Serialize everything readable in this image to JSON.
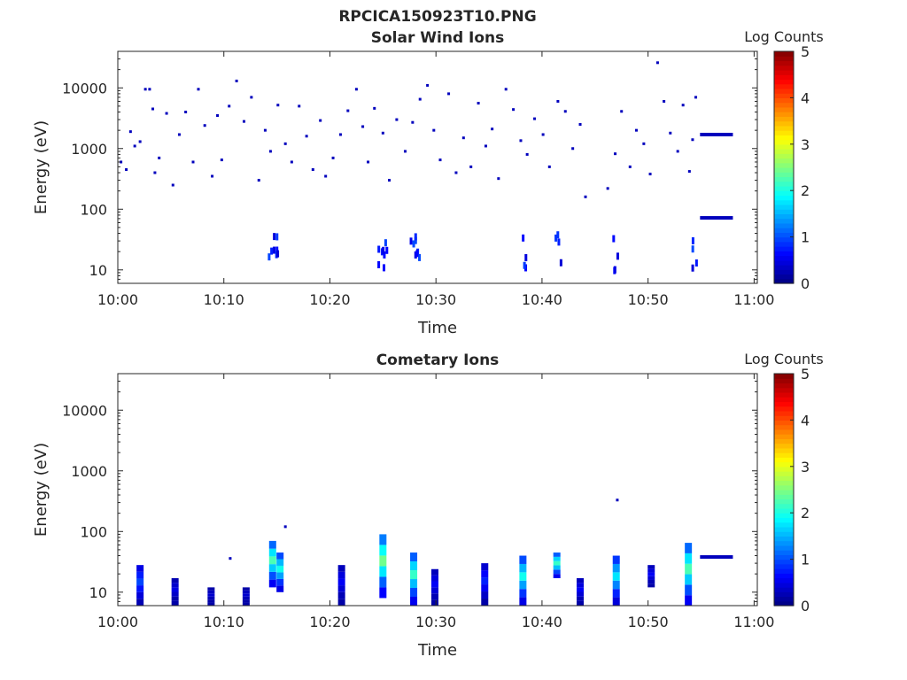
{
  "figure_title": "RPCICA150923T10.PNG",
  "colorbar": {
    "label": "Log Counts",
    "ticks": [
      "0",
      "1",
      "2",
      "3",
      "4",
      "5"
    ],
    "range": [
      0,
      5
    ],
    "colormap": "jet"
  },
  "chart_data": [
    {
      "type": "heatmap",
      "title": "Solar Wind Ions",
      "xlabel": "Time",
      "ylabel": "Energy (eV)",
      "xticks": [
        "10:00",
        "10:10",
        "10:20",
        "10:30",
        "10:40",
        "10:50",
        "11:00"
      ],
      "xlim_minutes": [
        0,
        60
      ],
      "yscale": "log",
      "ylim": [
        6,
        40000
      ],
      "yticks": [
        "10",
        "100",
        "1000",
        "10000"
      ],
      "scattered_points": [
        [
          0.3,
          600
        ],
        [
          0.8,
          450
        ],
        [
          1.2,
          1900
        ],
        [
          1.6,
          1100
        ],
        [
          2.1,
          1300
        ],
        [
          2.6,
          9500
        ],
        [
          3.0,
          9500
        ],
        [
          3.3,
          4500
        ],
        [
          3.5,
          400
        ],
        [
          3.9,
          700
        ],
        [
          4.6,
          3800
        ],
        [
          5.2,
          250
        ],
        [
          5.8,
          1700
        ],
        [
          6.4,
          4000
        ],
        [
          7.1,
          600
        ],
        [
          7.6,
          9500
        ],
        [
          8.2,
          2400
        ],
        [
          8.9,
          350
        ],
        [
          9.4,
          3500
        ],
        [
          9.8,
          650
        ],
        [
          10.5,
          5000
        ],
        [
          11.2,
          13000
        ],
        [
          11.9,
          2800
        ],
        [
          12.6,
          7000
        ],
        [
          13.3,
          300
        ],
        [
          13.9,
          2000
        ],
        [
          14.4,
          900
        ],
        [
          15.1,
          5200
        ],
        [
          15.8,
          1200
        ],
        [
          16.4,
          600
        ],
        [
          17.1,
          5000
        ],
        [
          17.8,
          1600
        ],
        [
          18.4,
          450
        ],
        [
          19.1,
          2900
        ],
        [
          19.6,
          350
        ],
        [
          20.3,
          700
        ],
        [
          21.0,
          1700
        ],
        [
          21.7,
          4200
        ],
        [
          22.5,
          9500
        ],
        [
          23.1,
          2300
        ],
        [
          23.6,
          600
        ],
        [
          24.2,
          4600
        ],
        [
          25.0,
          1800
        ],
        [
          25.6,
          300
        ],
        [
          26.3,
          3000
        ],
        [
          27.1,
          900
        ],
        [
          27.8,
          2700
        ],
        [
          28.5,
          6500
        ],
        [
          29.2,
          11000
        ],
        [
          29.8,
          2000
        ],
        [
          30.4,
          650
        ],
        [
          31.2,
          8000
        ],
        [
          31.9,
          400
        ],
        [
          32.6,
          1500
        ],
        [
          33.3,
          500
        ],
        [
          34.0,
          5600
        ],
        [
          34.7,
          1100
        ],
        [
          35.3,
          2100
        ],
        [
          35.9,
          320
        ],
        [
          36.6,
          9500
        ],
        [
          37.3,
          4400
        ],
        [
          38.0,
          1350
        ],
        [
          38.6,
          800
        ],
        [
          39.3,
          3100
        ],
        [
          40.1,
          1700
        ],
        [
          40.7,
          500
        ],
        [
          41.5,
          6000
        ],
        [
          42.2,
          4100
        ],
        [
          42.9,
          1000
        ],
        [
          43.6,
          2500
        ],
        [
          44.1,
          160
        ],
        [
          46.2,
          220
        ],
        [
          46.9,
          820
        ],
        [
          47.5,
          4100
        ],
        [
          48.3,
          500
        ],
        [
          48.9,
          2000
        ],
        [
          49.6,
          1200
        ],
        [
          50.2,
          380
        ],
        [
          50.9,
          26000
        ],
        [
          51.5,
          6000
        ],
        [
          52.1,
          1800
        ],
        [
          52.8,
          900
        ],
        [
          53.3,
          5200
        ],
        [
          53.9,
          420
        ],
        [
          54.2,
          1400
        ],
        [
          54.5,
          7000
        ]
      ],
      "dense_columns_minutes": [
        14.5,
        15.2,
        24.8,
        25.2,
        27.9,
        28.2,
        38.2,
        41.5,
        47.0,
        54.3
      ],
      "bands": [
        {
          "energy": 1700,
          "t_start": 54.9,
          "t_end": 58.0,
          "level": 0.3
        },
        {
          "energy": 72,
          "t_start": 54.9,
          "t_end": 58.0,
          "level": 0.3
        }
      ]
    },
    {
      "type": "heatmap",
      "title": "Cometary Ions",
      "xlabel": "Time",
      "ylabel": "Energy (eV)",
      "xticks": [
        "10:00",
        "10:10",
        "10:20",
        "10:30",
        "10:40",
        "10:50",
        "11:00"
      ],
      "xlim_minutes": [
        0,
        60
      ],
      "yscale": "log",
      "ylim": [
        6,
        40000
      ],
      "yticks": [
        "10",
        "100",
        "1000",
        "10000"
      ],
      "bursts": [
        {
          "t": 2.1,
          "e_low": 6,
          "e_high": 28,
          "peak": 1.0
        },
        {
          "t": 5.4,
          "e_low": 6,
          "e_high": 17,
          "peak": 0.5
        },
        {
          "t": 8.8,
          "e_low": 6,
          "e_high": 12,
          "peak": 0.4
        },
        {
          "t": 12.1,
          "e_low": 6,
          "e_high": 12,
          "peak": 0.4
        },
        {
          "t": 14.6,
          "e_low": 12,
          "e_high": 70,
          "peak": 2.3
        },
        {
          "t": 15.3,
          "e_low": 10,
          "e_high": 45,
          "peak": 2.0
        },
        {
          "t": 21.1,
          "e_low": 6,
          "e_high": 28,
          "peak": 0.6
        },
        {
          "t": 25.0,
          "e_low": 8,
          "e_high": 90,
          "peak": 2.5
        },
        {
          "t": 27.9,
          "e_low": 6,
          "e_high": 45,
          "peak": 2.2
        },
        {
          "t": 29.9,
          "e_low": 6,
          "e_high": 24,
          "peak": 0.6
        },
        {
          "t": 34.6,
          "e_low": 6,
          "e_high": 30,
          "peak": 0.8
        },
        {
          "t": 38.2,
          "e_low": 6,
          "e_high": 40,
          "peak": 2.0
        },
        {
          "t": 41.4,
          "e_low": 17,
          "e_high": 45,
          "peak": 2.2
        },
        {
          "t": 43.6,
          "e_low": 6,
          "e_high": 17,
          "peak": 0.6
        },
        {
          "t": 47.0,
          "e_low": 6,
          "e_high": 40,
          "peak": 1.8
        },
        {
          "t": 50.3,
          "e_low": 12,
          "e_high": 28,
          "peak": 0.6
        },
        {
          "t": 53.8,
          "e_low": 6,
          "e_high": 65,
          "peak": 2.3
        }
      ],
      "scattered_points": [
        [
          10.6,
          36
        ],
        [
          15.8,
          120
        ],
        [
          47.1,
          330
        ]
      ],
      "bands": [
        {
          "energy": 38,
          "t_start": 54.9,
          "t_end": 58.0,
          "level": 0.3
        }
      ]
    }
  ]
}
